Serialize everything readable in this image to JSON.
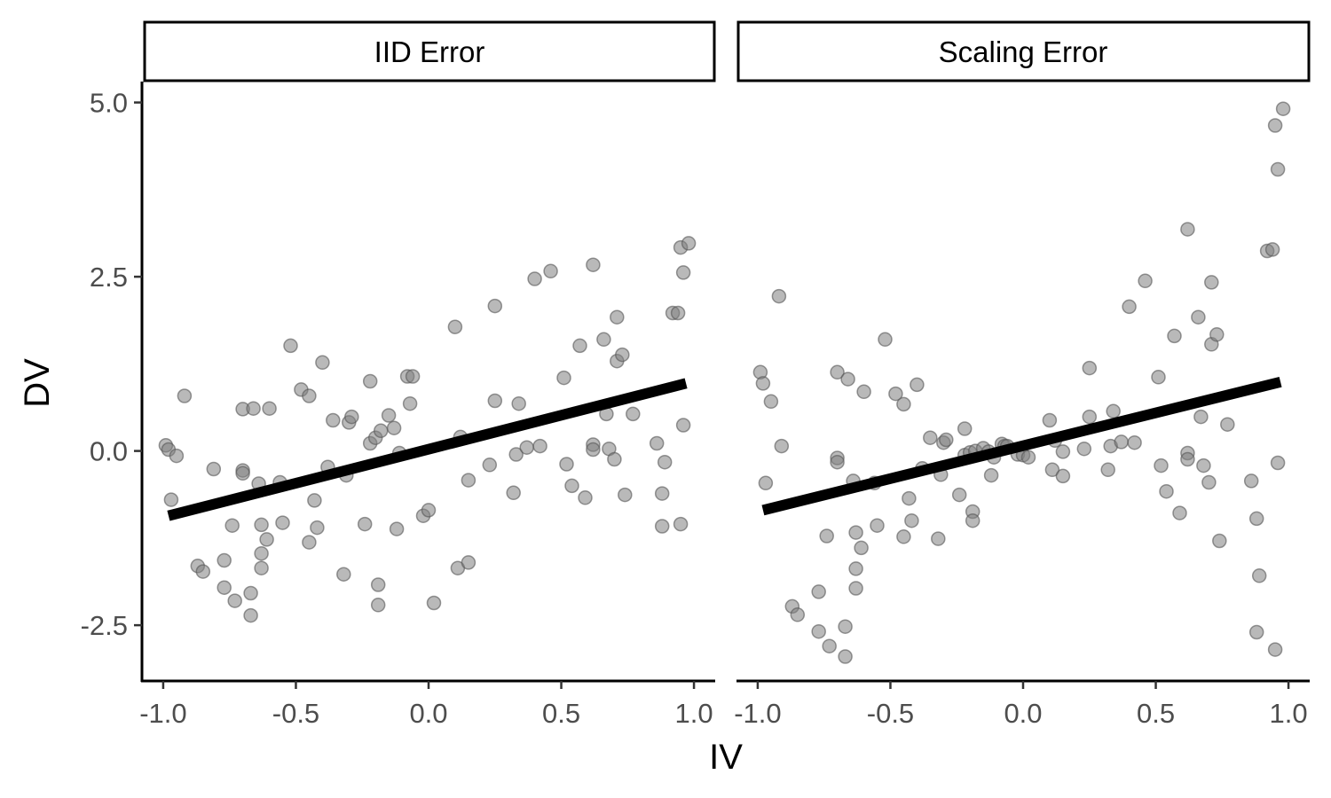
{
  "chart_data": {
    "type": "scatter",
    "xlabel": "IV",
    "ylabel": "DV",
    "xlim": [
      -1.08,
      1.08
    ],
    "ylim": [
      -3.3,
      5.3
    ],
    "x_ticks": [
      -1.0,
      -0.5,
      0.0,
      0.5,
      1.0
    ],
    "x_tick_labels": [
      "-1.0",
      "-0.5",
      "0.0",
      "0.5",
      "1.0"
    ],
    "y_ticks": [
      -2.5,
      0.0,
      2.5,
      5.0
    ],
    "y_tick_labels": [
      "-2.5",
      "0.0",
      "2.5",
      "5.0"
    ],
    "grid": false,
    "point_color": "#7f7f7f",
    "line_color": "#000000",
    "panels": [
      {
        "title": "IID Error",
        "fit_line": {
          "x": [
            -0.98,
            0.97
          ],
          "y": [
            -0.93,
            0.97
          ]
        },
        "points": [
          [
            -0.99,
            0.08
          ],
          [
            -0.98,
            0.02
          ],
          [
            -0.97,
            -0.7
          ],
          [
            -0.95,
            -0.07
          ],
          [
            -0.92,
            0.79
          ],
          [
            -0.87,
            -1.65
          ],
          [
            -0.85,
            -1.73
          ],
          [
            -0.81,
            -0.26
          ],
          [
            -0.77,
            -1.57
          ],
          [
            -0.77,
            -1.96
          ],
          [
            -0.74,
            -1.07
          ],
          [
            -0.73,
            -2.15
          ],
          [
            -0.7,
            0.6
          ],
          [
            -0.7,
            -0.28
          ],
          [
            -0.7,
            -0.32
          ],
          [
            -0.67,
            -2.04
          ],
          [
            -0.67,
            -2.36
          ],
          [
            -0.66,
            0.61
          ],
          [
            -0.64,
            -0.47
          ],
          [
            -0.63,
            -1.68
          ],
          [
            -0.63,
            -1.47
          ],
          [
            -0.63,
            -1.06
          ],
          [
            -0.61,
            -1.27
          ],
          [
            -0.6,
            0.61
          ],
          [
            -0.56,
            -0.45
          ],
          [
            -0.55,
            -1.03
          ],
          [
            -0.52,
            1.51
          ],
          [
            -0.48,
            0.88
          ],
          [
            -0.45,
            0.79
          ],
          [
            -0.45,
            -1.31
          ],
          [
            -0.43,
            -0.71
          ],
          [
            -0.42,
            -1.1
          ],
          [
            -0.4,
            1.27
          ],
          [
            -0.38,
            -0.23
          ],
          [
            -0.36,
            0.44
          ],
          [
            -0.32,
            -1.77
          ],
          [
            -0.31,
            -0.35
          ],
          [
            -0.3,
            0.41
          ],
          [
            -0.29,
            0.49
          ],
          [
            -0.24,
            -1.05
          ],
          [
            -0.22,
            1.0
          ],
          [
            -0.22,
            0.11
          ],
          [
            -0.2,
            0.19
          ],
          [
            -0.19,
            -1.92
          ],
          [
            -0.19,
            -2.21
          ],
          [
            -0.18,
            0.29
          ],
          [
            -0.15,
            0.51
          ],
          [
            -0.13,
            0.33
          ],
          [
            -0.12,
            -1.12
          ],
          [
            -0.11,
            -0.03
          ],
          [
            -0.08,
            1.07
          ],
          [
            -0.07,
            0.68
          ],
          [
            -0.06,
            1.07
          ],
          [
            -0.02,
            -0.93
          ],
          [
            0.0,
            -0.85
          ],
          [
            0.02,
            -2.18
          ],
          [
            0.1,
            1.78
          ],
          [
            0.11,
            -1.68
          ],
          [
            0.12,
            0.2
          ],
          [
            0.15,
            -1.6
          ],
          [
            0.15,
            -0.42
          ],
          [
            0.23,
            -0.2
          ],
          [
            0.25,
            2.08
          ],
          [
            0.25,
            0.72
          ],
          [
            0.32,
            -0.6
          ],
          [
            0.33,
            -0.05
          ],
          [
            0.34,
            0.68
          ],
          [
            0.37,
            0.05
          ],
          [
            0.4,
            2.47
          ],
          [
            0.42,
            0.07
          ],
          [
            0.46,
            2.58
          ],
          [
            0.51,
            1.05
          ],
          [
            0.52,
            -0.19
          ],
          [
            0.54,
            -0.5
          ],
          [
            0.57,
            1.51
          ],
          [
            0.59,
            -0.67
          ],
          [
            0.62,
            2.67
          ],
          [
            0.62,
            0.09
          ],
          [
            0.62,
            0.02
          ],
          [
            0.66,
            1.6
          ],
          [
            0.67,
            0.53
          ],
          [
            0.68,
            0.03
          ],
          [
            0.7,
            -0.12
          ],
          [
            0.71,
            1.92
          ],
          [
            0.71,
            1.29
          ],
          [
            0.73,
            1.38
          ],
          [
            0.74,
            -0.63
          ],
          [
            0.77,
            0.53
          ],
          [
            0.86,
            0.11
          ],
          [
            0.88,
            -1.08
          ],
          [
            0.88,
            -0.61
          ],
          [
            0.89,
            -0.16
          ],
          [
            0.92,
            1.98
          ],
          [
            0.94,
            1.98
          ],
          [
            0.95,
            2.92
          ],
          [
            0.95,
            -1.05
          ],
          [
            0.96,
            0.37
          ],
          [
            0.96,
            2.56
          ],
          [
            0.98,
            2.98
          ]
        ]
      },
      {
        "title": "Scaling Error",
        "fit_line": {
          "x": [
            -0.98,
            0.97
          ],
          "y": [
            -0.85,
            0.99
          ]
        },
        "points": [
          [
            -0.99,
            1.13
          ],
          [
            -0.98,
            0.97
          ],
          [
            -0.97,
            -0.46
          ],
          [
            -0.95,
            0.71
          ],
          [
            -0.92,
            2.22
          ],
          [
            -0.91,
            0.07
          ],
          [
            -0.87,
            -2.23
          ],
          [
            -0.85,
            -2.35
          ],
          [
            -0.77,
            -2.59
          ],
          [
            -0.77,
            -2.02
          ],
          [
            -0.74,
            -1.22
          ],
          [
            -0.73,
            -2.8
          ],
          [
            -0.7,
            1.13
          ],
          [
            -0.7,
            -0.1
          ],
          [
            -0.7,
            -0.16
          ],
          [
            -0.67,
            -2.52
          ],
          [
            -0.67,
            -2.95
          ],
          [
            -0.66,
            1.03
          ],
          [
            -0.64,
            -0.43
          ],
          [
            -0.63,
            -1.69
          ],
          [
            -0.63,
            -1.97
          ],
          [
            -0.63,
            -1.17
          ],
          [
            -0.61,
            -1.39
          ],
          [
            -0.6,
            0.85
          ],
          [
            -0.56,
            -0.46
          ],
          [
            -0.55,
            -1.07
          ],
          [
            -0.52,
            1.6
          ],
          [
            -0.48,
            0.82
          ],
          [
            -0.45,
            0.67
          ],
          [
            -0.45,
            -1.23
          ],
          [
            -0.43,
            -0.68
          ],
          [
            -0.42,
            -1.0
          ],
          [
            -0.4,
            0.95
          ],
          [
            -0.38,
            -0.25
          ],
          [
            -0.35,
            0.19
          ],
          [
            -0.32,
            -1.26
          ],
          [
            -0.31,
            -0.34
          ],
          [
            -0.3,
            0.12
          ],
          [
            -0.29,
            0.16
          ],
          [
            -0.24,
            -0.63
          ],
          [
            -0.22,
            0.32
          ],
          [
            -0.22,
            -0.06
          ],
          [
            -0.2,
            -0.02
          ],
          [
            -0.19,
            -0.87
          ],
          [
            -0.19,
            -1.0
          ],
          [
            -0.18,
            0.0
          ],
          [
            -0.15,
            0.04
          ],
          [
            -0.13,
            -0.01
          ],
          [
            -0.12,
            -0.35
          ],
          [
            -0.11,
            -0.09
          ],
          [
            -0.08,
            0.1
          ],
          [
            -0.07,
            0.07
          ],
          [
            -0.06,
            0.07
          ],
          [
            -0.02,
            -0.05
          ],
          [
            0.0,
            -0.06
          ],
          [
            0.02,
            -0.09
          ],
          [
            0.1,
            0.44
          ],
          [
            0.11,
            -0.27
          ],
          [
            0.12,
            0.15
          ],
          [
            0.15,
            -0.36
          ],
          [
            0.15,
            -0.01
          ],
          [
            0.23,
            0.03
          ],
          [
            0.25,
            1.19
          ],
          [
            0.25,
            0.49
          ],
          [
            0.32,
            -0.27
          ],
          [
            0.33,
            0.07
          ],
          [
            0.34,
            0.57
          ],
          [
            0.37,
            0.13
          ],
          [
            0.4,
            2.07
          ],
          [
            0.42,
            0.12
          ],
          [
            0.46,
            2.44
          ],
          [
            0.51,
            1.06
          ],
          [
            0.52,
            -0.21
          ],
          [
            0.54,
            -0.58
          ],
          [
            0.57,
            1.65
          ],
          [
            0.59,
            -0.89
          ],
          [
            0.62,
            3.18
          ],
          [
            0.62,
            -0.03
          ],
          [
            0.62,
            -0.12
          ],
          [
            0.66,
            1.92
          ],
          [
            0.67,
            0.49
          ],
          [
            0.68,
            -0.21
          ],
          [
            0.7,
            -0.45
          ],
          [
            0.71,
            2.42
          ],
          [
            0.71,
            1.53
          ],
          [
            0.73,
            1.67
          ],
          [
            0.74,
            -1.29
          ],
          [
            0.77,
            0.38
          ],
          [
            0.86,
            -0.43
          ],
          [
            0.88,
            -2.6
          ],
          [
            0.88,
            -0.97
          ],
          [
            0.89,
            -1.79
          ],
          [
            0.92,
            2.87
          ],
          [
            0.94,
            2.89
          ],
          [
            0.95,
            4.67
          ],
          [
            0.95,
            -2.85
          ],
          [
            0.96,
            -0.17
          ],
          [
            0.96,
            4.04
          ],
          [
            0.98,
            4.91
          ]
        ]
      }
    ]
  }
}
